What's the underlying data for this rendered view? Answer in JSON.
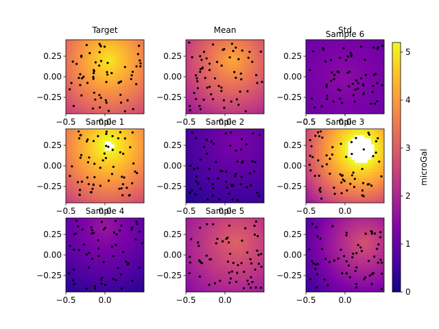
{
  "chart_data": [
    {
      "type": "heatmap",
      "title": "Target",
      "xlim": [
        -0.5,
        0.5
      ],
      "ylim": [
        -0.45,
        0.45
      ],
      "xticks": [
        "−0.5",
        "0.0"
      ],
      "yticks": [
        "0.25",
        "0.00",
        "−0.25"
      ],
      "field": {
        "peak_value": 5.0,
        "peak_location": [
          0.05,
          0.2
        ],
        "edge_value": 2.3
      }
    },
    {
      "type": "heatmap",
      "title": "Mean",
      "xlim": [
        -0.5,
        0.5
      ],
      "ylim": [
        -0.45,
        0.45
      ],
      "xticks": [
        "−0.5",
        "0.0"
      ],
      "yticks": [
        "0.25",
        "0.00",
        "−0.25"
      ],
      "field": {
        "peak_value": 4.2,
        "peak_location": [
          0.1,
          0.2
        ],
        "edge_value": 1.6
      }
    },
    {
      "type": "heatmap",
      "title": "Std",
      "xlim": [
        -0.5,
        0.5
      ],
      "ylim": [
        -0.45,
        0.45
      ],
      "xticks": [
        "−0.5",
        "0.0"
      ],
      "yticks": [],
      "field": {
        "peak_value": 1.2,
        "peak_location": [
          0.0,
          0.0
        ],
        "edge_value": 1.0
      }
    },
    {
      "type": "heatmap",
      "title": "Sample 6",
      "xlim": [
        -0.5,
        0.5
      ],
      "ylim": [
        -0.45,
        0.45
      ],
      "xticks": [
        "−0.5",
        "0.0"
      ],
      "yticks": [
        "0.25",
        "0.00",
        "−0.25"
      ],
      "field": {
        "peak_value": 1.5,
        "peak_location": [
          0.0,
          0.0
        ],
        "edge_value": 0.9
      }
    },
    {
      "type": "heatmap",
      "title": "Sample 1",
      "xlim": [
        -0.5,
        0.5
      ],
      "ylim": [
        -0.45,
        0.45
      ],
      "xticks": [
        "−0.5",
        "0.0"
      ],
      "yticks": [
        "0.25",
        "0.00",
        "−0.25"
      ],
      "field": {
        "peak_value": 5.4,
        "peak_location": [
          0.05,
          0.25
        ],
        "edge_value": 2.4
      }
    },
    {
      "type": "heatmap",
      "title": "Sample 2",
      "xlim": [
        -0.5,
        0.5
      ],
      "ylim": [
        -0.45,
        0.45
      ],
      "xticks": [
        "−0.5",
        "0.0"
      ],
      "yticks": [
        "0.25",
        "0.00",
        "−0.25"
      ],
      "field": {
        "peak_value": 1.3,
        "peak_location": [
          0.15,
          0.3
        ],
        "edge_value": 0.3
      }
    },
    {
      "type": "heatmap",
      "title": "Sample 3",
      "xlim": [
        -0.5,
        0.5
      ],
      "ylim": [
        -0.45,
        0.45
      ],
      "xticks": [
        "−0.5",
        "0.0"
      ],
      "yticks": [
        "0.25",
        "0.00",
        "−0.25"
      ],
      "field": {
        "peak_value": 6.0,
        "peak_location": [
          0.2,
          0.2
        ],
        "edge_value": 1.8
      }
    },
    {
      "type": "heatmap",
      "title": "Sample 4",
      "xlim": [
        -0.5,
        0.5
      ],
      "ylim": [
        -0.45,
        0.45
      ],
      "xticks": [
        "−0.5",
        "0.0"
      ],
      "yticks": [
        "0.25",
        "0.00",
        "−0.25"
      ],
      "field": {
        "peak_value": 1.7,
        "peak_location": [
          0.0,
          0.35
        ],
        "edge_value": 0.3
      }
    },
    {
      "type": "heatmap",
      "title": "Sample 5",
      "xlim": [
        -0.5,
        0.5
      ],
      "ylim": [
        -0.45,
        0.45
      ],
      "xticks": [
        "−0.5",
        "0.0"
      ],
      "yticks": [
        "0.25",
        "0.00",
        "−0.25"
      ],
      "field": {
        "peak_value": 3.1,
        "peak_location": [
          0.15,
          0.15
        ],
        "edge_value": 1.4
      }
    },
    {
      "type": "heatmap",
      "title": "",
      "xlim": [
        -0.5,
        0.5
      ],
      "ylim": [
        -0.45,
        0.45
      ],
      "xticks": [
        "−0.5",
        "0.0"
      ],
      "yticks": [
        "0.25",
        "0.00",
        "−0.25"
      ],
      "field": {
        "peak_value": 2.8,
        "peak_location": [
          0.25,
          0.15
        ],
        "edge_value": 0.5
      }
    }
  ],
  "colorbar": {
    "label": "microGal",
    "min": 0,
    "max": 5.2,
    "ticks": [
      "0",
      "1",
      "2",
      "3",
      "4",
      "5"
    ],
    "colormap": "plasma"
  },
  "colors": {
    "point": "#000000",
    "axes": "#000000",
    "background": "#ffffff"
  }
}
